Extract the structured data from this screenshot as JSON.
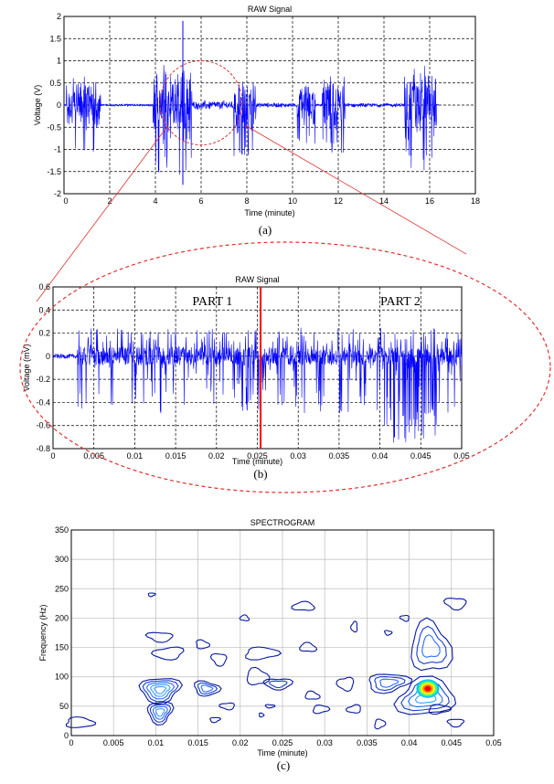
{
  "chart_data": [
    {
      "type": "line",
      "title": "RAW Signal",
      "xlabel": "Time (minute)",
      "ylabel": "Voltage (V)",
      "xlim": [
        0,
        18
      ],
      "ylim": [
        -2,
        2
      ],
      "xticks": [
        "0",
        "2",
        "4",
        "6",
        "8",
        "10",
        "12",
        "14",
        "16",
        "18"
      ],
      "yticks": [
        "2",
        "1.5",
        "1",
        "0.5",
        "0",
        "-0.5",
        "-1",
        "-1.5",
        "-2"
      ],
      "grid": true,
      "caption": "(a)",
      "series": [
        {
          "color": "#0000ff",
          "bursts": [
            {
              "x": [
                0.1,
                1.6
              ],
              "amplitude": 0.7
            },
            {
              "x": [
                3.9,
                5.6
              ],
              "amplitude": 1.0
            },
            {
              "x": [
                7.4,
                8.4
              ],
              "amplitude": 0.75
            },
            {
              "x": [
                10.2,
                11.0
              ],
              "amplitude": 0.55
            },
            {
              "x": [
                11.3,
                12.3
              ],
              "amplitude": 0.7
            },
            {
              "x": [
                14.9,
                16.3
              ],
              "amplitude": 0.95
            }
          ],
          "quiet_ranges": [
            {
              "x": [
                5.6,
                7.4
              ],
              "amplitude": 0.12
            },
            {
              "x": [
                8.4,
                10.2
              ],
              "amplitude": 0.06
            },
            {
              "x": [
                12.3,
                14.9
              ],
              "amplitude": 0.05
            }
          ],
          "spike": {
            "x": 5.2,
            "y": [
              -1.8,
              1.9
            ]
          }
        }
      ],
      "highlight_ellipse": {
        "cx": 6.0,
        "cy": 0.05,
        "rx": 1.8,
        "ry": 0.95,
        "color": "#e03030"
      }
    },
    {
      "type": "line",
      "title": "RAW Signal",
      "xlabel": "Time (minute)",
      "ylabel": "Voltage (mV)",
      "xlim": [
        0,
        0.05
      ],
      "ylim": [
        -0.8,
        0.6
      ],
      "xticks": [
        "0",
        "0.005",
        "0.01",
        "0.015",
        "0.02",
        "0.025",
        "0.03",
        "0.035",
        "0.04",
        "0.045",
        "0.05"
      ],
      "yticks": [
        "0.6",
        "0.4",
        "0.2",
        "0",
        "-0.2",
        "-0.4",
        "-0.6",
        "-0.8"
      ],
      "grid": true,
      "caption": "(b)",
      "annotations": [
        {
          "text": "PART 1",
          "x": 0.0195,
          "y": 0.44
        },
        {
          "text": "PART 2",
          "x": 0.0425,
          "y": 0.44
        }
      ],
      "divider": {
        "x": 0.0254,
        "color": "#ff0000"
      },
      "series": [
        {
          "color": "#0000ff",
          "amplitude_positive": 0.25,
          "amplitude_negative": -0.75
        }
      ],
      "zoom_ellipse": {
        "color": "#e03030"
      }
    },
    {
      "type": "heatmap",
      "title": "SPECTROGRAM",
      "xlabel": "Time (minute)",
      "ylabel": "Frequency (Hz)",
      "xlim": [
        0,
        0.05
      ],
      "ylim": [
        0,
        350
      ],
      "xticks": [
        "0",
        "0.005",
        "0.01",
        "0.015",
        "0.02",
        "0.025",
        "0.03",
        "0.035",
        "0.04",
        "0.045",
        "0.05"
      ],
      "yticks": [
        "350",
        "300",
        "250",
        "200",
        "150",
        "100",
        "50",
        "0"
      ],
      "grid": true,
      "caption": "(c)",
      "contours": [
        {
          "x": 0.001,
          "y": 22,
          "rx": 0.0018,
          "ry": 8,
          "levels": 1
        },
        {
          "x": 0.0095,
          "y": 240,
          "rx": 0.0004,
          "ry": 3,
          "levels": 1
        },
        {
          "x": 0.0105,
          "y": 168,
          "rx": 0.0015,
          "ry": 8,
          "levels": 1
        },
        {
          "x": 0.0115,
          "y": 140,
          "rx": 0.0018,
          "ry": 10,
          "levels": 1
        },
        {
          "x": 0.0155,
          "y": 155,
          "rx": 0.0008,
          "ry": 7,
          "levels": 1
        },
        {
          "x": 0.0175,
          "y": 130,
          "rx": 0.0009,
          "ry": 10,
          "levels": 1
        },
        {
          "x": 0.0105,
          "y": 78,
          "rx": 0.0025,
          "ry": 20,
          "levels": 5
        },
        {
          "x": 0.0105,
          "y": 40,
          "rx": 0.0015,
          "ry": 18,
          "levels": 4
        },
        {
          "x": 0.016,
          "y": 80,
          "rx": 0.0015,
          "ry": 12,
          "levels": 3
        },
        {
          "x": 0.0185,
          "y": 50,
          "rx": 0.0008,
          "ry": 6,
          "levels": 1
        },
        {
          "x": 0.017,
          "y": 27,
          "rx": 0.0006,
          "ry": 4,
          "levels": 1
        },
        {
          "x": 0.0205,
          "y": 200,
          "rx": 0.0005,
          "ry": 5,
          "levels": 1
        },
        {
          "x": 0.0225,
          "y": 140,
          "rx": 0.002,
          "ry": 10,
          "levels": 1
        },
        {
          "x": 0.022,
          "y": 100,
          "rx": 0.0012,
          "ry": 15,
          "levels": 1
        },
        {
          "x": 0.0245,
          "y": 88,
          "rx": 0.0015,
          "ry": 10,
          "levels": 2
        },
        {
          "x": 0.0235,
          "y": 50,
          "rx": 0.0005,
          "ry": 3,
          "levels": 1
        },
        {
          "x": 0.0225,
          "y": 35,
          "rx": 0.0003,
          "ry": 3,
          "levels": 1
        },
        {
          "x": 0.0275,
          "y": 220,
          "rx": 0.0012,
          "ry": 8,
          "levels": 1
        },
        {
          "x": 0.028,
          "y": 150,
          "rx": 0.0009,
          "ry": 8,
          "levels": 1
        },
        {
          "x": 0.0285,
          "y": 68,
          "rx": 0.0008,
          "ry": 7,
          "levels": 1
        },
        {
          "x": 0.0295,
          "y": 45,
          "rx": 0.0009,
          "ry": 7,
          "levels": 1
        },
        {
          "x": 0.0335,
          "y": 185,
          "rx": 0.0004,
          "ry": 8,
          "levels": 1
        },
        {
          "x": 0.0325,
          "y": 88,
          "rx": 0.0009,
          "ry": 12,
          "levels": 1
        },
        {
          "x": 0.0365,
          "y": 20,
          "rx": 0.0006,
          "ry": 8,
          "levels": 1
        },
        {
          "x": 0.0335,
          "y": 45,
          "rx": 0.0008,
          "ry": 7,
          "levels": 1
        },
        {
          "x": 0.0375,
          "y": 175,
          "rx": 0.0004,
          "ry": 4,
          "levels": 1
        },
        {
          "x": 0.0375,
          "y": 90,
          "rx": 0.0025,
          "ry": 15,
          "levels": 3
        },
        {
          "x": 0.042,
          "y": 65,
          "rx": 0.0035,
          "ry": 30,
          "levels": 4
        },
        {
          "x": 0.0425,
          "y": 150,
          "rx": 0.0022,
          "ry": 45,
          "levels": 3
        },
        {
          "x": 0.0455,
          "y": 225,
          "rx": 0.0012,
          "ry": 10,
          "levels": 1
        },
        {
          "x": 0.0395,
          "y": 200,
          "rx": 0.0005,
          "ry": 5,
          "levels": 1
        },
        {
          "x": 0.0435,
          "y": 45,
          "rx": 0.0012,
          "ry": 8,
          "levels": 1
        },
        {
          "x": 0.0455,
          "y": 22,
          "rx": 0.001,
          "ry": 6,
          "levels": 1
        }
      ],
      "hotspot": {
        "x": 0.0422,
        "y": 80,
        "levels": [
          "#00c8ff",
          "#40ff80",
          "#ffff00",
          "#ff9900",
          "#ff0000"
        ]
      }
    }
  ]
}
